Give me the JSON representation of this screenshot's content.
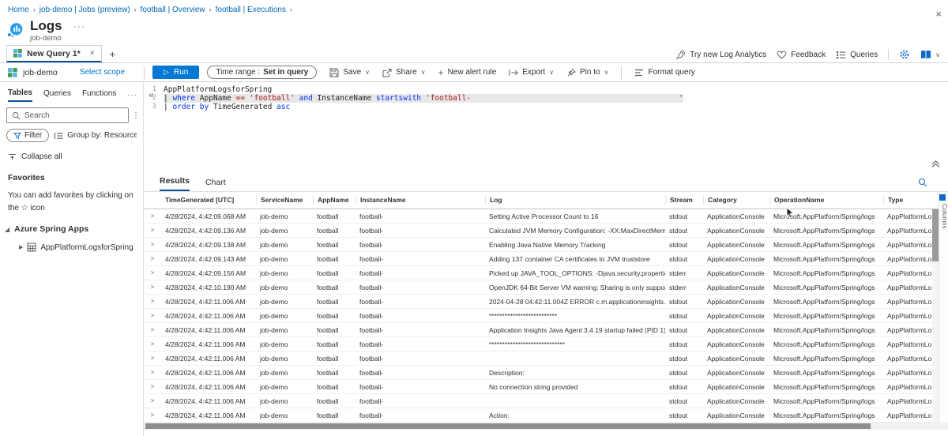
{
  "colors": {
    "accent": "#0078d4",
    "keyword": "#0433fa",
    "string": "#a31515",
    "selection": "#e8e8e8"
  },
  "icons": {
    "more": "···",
    "close": "×",
    "add_tab": "+",
    "collapse_left": "«",
    "overflow_v": "⋮",
    "chevron_down": "∨",
    "chevron_right": ">",
    "tree_expanded": "◢",
    "tree_collapsed": "▶",
    "run_play": "▷"
  },
  "breadcrumb": {
    "items": [
      "Home",
      "job-demo | Jobs (preview)",
      "football | Overview",
      "football | Executions"
    ],
    "separator": "›"
  },
  "header": {
    "title": "Logs",
    "subtitle": "job-demo"
  },
  "tabs": {
    "active_label": "New Query 1*"
  },
  "topbar_right": {
    "try_new": "Try new Log Analytics",
    "feedback": "Feedback",
    "queries": "Queries"
  },
  "scope": {
    "name": "job-demo",
    "select_scope": "Select scope"
  },
  "toolbar": {
    "run": "Run",
    "time_range_label": "Time range :",
    "time_range_value": "Set in query",
    "save": "Save",
    "share": "Share",
    "new_alert_rule": "New alert rule",
    "export": "Export",
    "pin_to": "Pin to",
    "format_query": "Format query"
  },
  "sidebar": {
    "tabs": [
      "Tables",
      "Queries",
      "Functions"
    ],
    "search_placeholder": "Search",
    "filter_label": "Filter",
    "group_by_label": "Group by: Resource type",
    "collapse_all": "Collapse all",
    "favorites_title": "Favorites",
    "favorites_hint": "You can add favorites by clicking on the ☆ icon",
    "group_label": "Azure Spring Apps",
    "table_label": "AppPlatformLogsforSpring"
  },
  "editor": {
    "lines": [
      {
        "num": "1",
        "selected": false,
        "segments": [
          {
            "t": "AppPlatformLogsforSpring",
            "c": "p"
          }
        ]
      },
      {
        "num": "2",
        "selected": true,
        "segments": [
          {
            "t": "| ",
            "c": "p"
          },
          {
            "t": "where",
            "c": "k"
          },
          {
            "t": " AppName ",
            "c": "p"
          },
          {
            "t": "==",
            "c": "o"
          },
          {
            "t": " ",
            "c": "p"
          },
          {
            "t": "'football'",
            "c": "s"
          },
          {
            "t": " and",
            "c": "k"
          },
          {
            "t": " InstanceName ",
            "c": "p"
          },
          {
            "t": "startswith",
            "c": "k"
          },
          {
            "t": " ",
            "c": "p"
          },
          {
            "t": "'football-",
            "c": "s"
          },
          {
            "t": "                                              ",
            "c": "s"
          },
          {
            "t": "'",
            "c": "s"
          }
        ]
      },
      {
        "num": "3",
        "selected": false,
        "segments": [
          {
            "t": "| ",
            "c": "p"
          },
          {
            "t": "order by",
            "c": "k"
          },
          {
            "t": " TimeGenerated ",
            "c": "p"
          },
          {
            "t": "asc",
            "c": "k"
          }
        ]
      }
    ]
  },
  "results": {
    "tabs": [
      "Results",
      "Chart"
    ],
    "active_tab": "Results",
    "columns": [
      "TimeGenerated [UTC]",
      "ServiceName",
      "AppName",
      "InstanceName",
      "Log",
      "Stream",
      "Category",
      "OperationName",
      "Type"
    ],
    "columns_panel_label": "Columns",
    "rows": [
      {
        "time": "4/28/2024, 4:42:09.068 AM",
        "service": "job-demo",
        "app": "football",
        "instance": "football-",
        "log": "Setting Active Processor Count to 16",
        "stream": "stdout",
        "category": "ApplicationConsole",
        "operation": "Microsoft.AppPlatform/Spring/logs",
        "type": "AppPlatformLogs"
      },
      {
        "time": "4/28/2024, 4:42:09.136 AM",
        "service": "job-demo",
        "app": "football",
        "instance": "football-",
        "log": "Calculated JVM Memory Configuration: -XX:MaxDirectMem...",
        "stream": "stdout",
        "category": "ApplicationConsole",
        "operation": "Microsoft.AppPlatform/Spring/logs",
        "type": "AppPlatformLogs"
      },
      {
        "time": "4/28/2024, 4:42:09.138 AM",
        "service": "job-demo",
        "app": "football",
        "instance": "football-",
        "log": "Enabling Java Native Memory Tracking",
        "stream": "stdout",
        "category": "ApplicationConsole",
        "operation": "Microsoft.AppPlatform/Spring/logs",
        "type": "AppPlatformLogs"
      },
      {
        "time": "4/28/2024, 4:42:09.143 AM",
        "service": "job-demo",
        "app": "football",
        "instance": "football-",
        "log": "Adding 137 container CA certificates to JVM truststore",
        "stream": "stdout",
        "category": "ApplicationConsole",
        "operation": "Microsoft.AppPlatform/Spring/logs",
        "type": "AppPlatformLogs"
      },
      {
        "time": "4/28/2024, 4:42:09.156 AM",
        "service": "job-demo",
        "app": "football",
        "instance": "football-",
        "log": "Picked up JAVA_TOOL_OPTIONS: -Djava.security.properties...",
        "stream": "stderr",
        "category": "ApplicationConsole",
        "operation": "Microsoft.AppPlatform/Spring/logs",
        "type": "AppPlatformLogs"
      },
      {
        "time": "4/28/2024, 4:42:10.190 AM",
        "service": "job-demo",
        "app": "football",
        "instance": "football-",
        "log": "OpenJDK 64-Bit Server VM warning: Sharing is only support...",
        "stream": "stderr",
        "category": "ApplicationConsole",
        "operation": "Microsoft.AppPlatform/Spring/logs",
        "type": "AppPlatformLogs"
      },
      {
        "time": "4/28/2024, 4:42:11.006 AM",
        "service": "job-demo",
        "app": "football",
        "instance": "football-",
        "log": "2024-04-28 04:42:11.004Z ERROR c.m.applicationinsights.ag...",
        "stream": "stdout",
        "category": "ApplicationConsole",
        "operation": "Microsoft.AppPlatform/Spring/logs",
        "type": "AppPlatformLogs"
      },
      {
        "time": "4/28/2024, 4:42:11.006 AM",
        "service": "job-demo",
        "app": "football",
        "instance": "football-",
        "log": "**************************",
        "stream": "stdout",
        "category": "ApplicationConsole",
        "operation": "Microsoft.AppPlatform/Spring/logs",
        "type": "AppPlatformLogs"
      },
      {
        "time": "4/28/2024, 4:42:11.006 AM",
        "service": "job-demo",
        "app": "football",
        "instance": "football-",
        "log": "Application Insights Java Agent 3.4.19 startup failed (PID 1)",
        "stream": "stdout",
        "category": "ApplicationConsole",
        "operation": "Microsoft.AppPlatform/Spring/logs",
        "type": "AppPlatformLogs"
      },
      {
        "time": "4/28/2024, 4:42:11.006 AM",
        "service": "job-demo",
        "app": "football",
        "instance": "football-",
        "log": "*****************************",
        "stream": "stdout",
        "category": "ApplicationConsole",
        "operation": "Microsoft.AppPlatform/Spring/logs",
        "type": "AppPlatformLogs"
      },
      {
        "time": "4/28/2024, 4:42:11.006 AM",
        "service": "job-demo",
        "app": "football",
        "instance": "football-",
        "log": "",
        "stream": "stdout",
        "category": "ApplicationConsole",
        "operation": "Microsoft.AppPlatform/Spring/logs",
        "type": "AppPlatformLogs"
      },
      {
        "time": "4/28/2024, 4:42:11.006 AM",
        "service": "job-demo",
        "app": "football",
        "instance": "football-",
        "log": "Description:",
        "stream": "stdout",
        "category": "ApplicationConsole",
        "operation": "Microsoft.AppPlatform/Spring/logs",
        "type": "AppPlatformLogs"
      },
      {
        "time": "4/28/2024, 4:42:11.006 AM",
        "service": "job-demo",
        "app": "football",
        "instance": "football-",
        "log": "No connection string provided",
        "stream": "stdout",
        "category": "ApplicationConsole",
        "operation": "Microsoft.AppPlatform/Spring/logs",
        "type": "AppPlatformLogs"
      },
      {
        "time": "4/28/2024, 4:42:11.006 AM",
        "service": "job-demo",
        "app": "football",
        "instance": "football-",
        "log": "",
        "stream": "stdout",
        "category": "ApplicationConsole",
        "operation": "Microsoft.AppPlatform/Spring/logs",
        "type": "AppPlatformLogs"
      },
      {
        "time": "4/28/2024, 4:42:11.006 AM",
        "service": "job-demo",
        "app": "football",
        "instance": "football-",
        "log": "Action:",
        "stream": "stdout",
        "category": "ApplicationConsole",
        "operation": "Microsoft.AppPlatform/Spring/logs",
        "type": "AppPlatformLogs"
      }
    ]
  }
}
